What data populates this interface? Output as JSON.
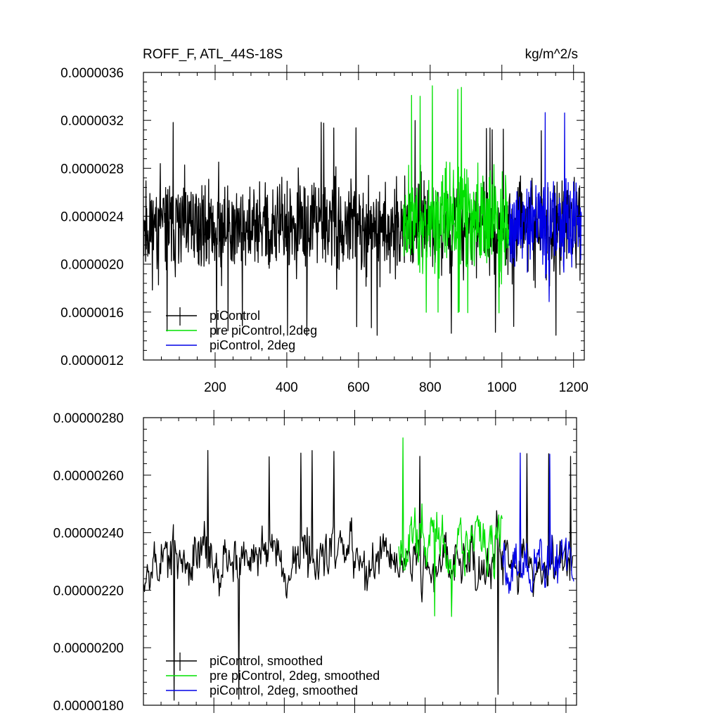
{
  "chart_data": [
    {
      "type": "line",
      "title_left": "ROFF_F, ATL_44S-18S",
      "title_right": "kg/m^2/s",
      "xlim": [
        0,
        1230
      ],
      "ylim": [
        1.2e-06,
        3.6e-06
      ],
      "xticks": [
        200,
        400,
        600,
        800,
        1000,
        1200
      ],
      "xtick_labels": [
        "200",
        "400",
        "600",
        "800",
        "1000",
        "1200"
      ],
      "yticks": [
        1.2e-06,
        1.6e-06,
        2e-06,
        2.4e-06,
        2.8e-06,
        3.2e-06,
        3.6e-06
      ],
      "ytick_labels": [
        "0.0000012",
        "0.0000016",
        "0.0000020",
        "0.0000024",
        "0.0000028",
        "0.0000032",
        "0.0000036"
      ],
      "legend_position": "bottom-left",
      "series": [
        {
          "name": "piControl",
          "color": "#000000",
          "x_range": [
            1,
            1220
          ],
          "mean": 2.31e-06,
          "amplitude": 3.2e-07,
          "min": 1.4e-06,
          "max": 3.2e-06,
          "seed": 11
        },
        {
          "name": "pre piControl, 2deg",
          "color": "#00e000",
          "x_range": [
            725,
            1020
          ],
          "mean": 2.37e-06,
          "amplitude": 3.6e-07,
          "min": 1.5e-06,
          "max": 3.5e-06,
          "seed": 23
        },
        {
          "name": "piControl, 2deg",
          "color": "#0000e6",
          "x_range": [
            1020,
            1222
          ],
          "mean": 2.32e-06,
          "amplitude": 3e-07,
          "min": 1.6e-06,
          "max": 3.3e-06,
          "seed": 37
        }
      ]
    },
    {
      "type": "line",
      "xlim": [
        0,
        1230
      ],
      "ylim": [
        1.8e-06,
        2.8e-06
      ],
      "xticks": [
        200,
        400,
        600,
        800,
        1000,
        1200
      ],
      "yticks": [
        1.8e-06,
        2e-06,
        2.2e-06,
        2.4e-06,
        2.6e-06,
        2.8e-06
      ],
      "ytick_labels": [
        "0.00000180",
        "0.00000200",
        "0.00000220",
        "0.00000240",
        "0.00000260",
        "0.00000280"
      ],
      "legend_position": "bottom-left",
      "series": [
        {
          "name": "piControl, smoothed",
          "color": "#000000",
          "x_range": [
            1,
            1220
          ],
          "mean": 2.31e-06,
          "amplitude": 1e-07,
          "min": 1.81e-06,
          "max": 2.69e-06,
          "seed": 53
        },
        {
          "name": "pre piControl, 2deg, smoothed",
          "color": "#00e000",
          "x_range": [
            725,
            1020
          ],
          "mean": 2.37e-06,
          "amplitude": 1.1e-07,
          "min": 2.09e-06,
          "max": 2.75e-06,
          "seed": 67
        },
        {
          "name": "piControl, 2deg, smoothed",
          "color": "#0000e6",
          "x_range": [
            1020,
            1222
          ],
          "mean": 2.31e-06,
          "amplitude": 1e-07,
          "min": 1.91e-06,
          "max": 2.69e-06,
          "seed": 79
        }
      ]
    }
  ]
}
